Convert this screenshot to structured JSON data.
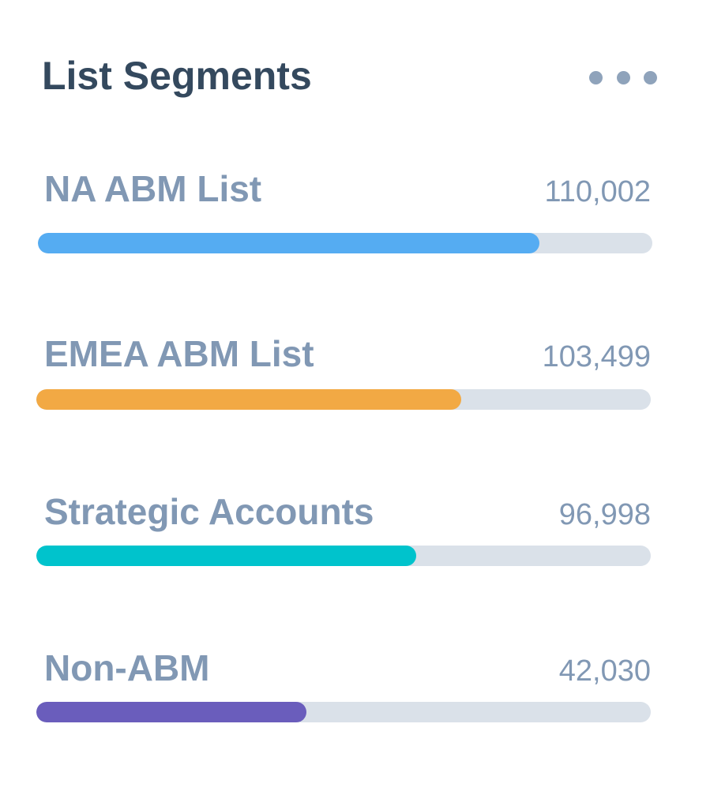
{
  "widget": {
    "title": "List Segments",
    "menu_icon": "more-horizontal-icon"
  },
  "segments": [
    {
      "label": "NA ABM List",
      "count": "110,002",
      "progress": 0.816,
      "color": "#55acf2"
    },
    {
      "label": "EMEA ABM List",
      "count": "103,499",
      "progress": 0.692,
      "color": "#f2a944"
    },
    {
      "label": "Strategic Accounts",
      "count": "96,998",
      "progress": 0.618,
      "color": "#00c3cc"
    },
    {
      "label": "Non-ABM",
      "count": "42,030",
      "progress": 0.44,
      "color": "#6a5dbc"
    }
  ]
}
